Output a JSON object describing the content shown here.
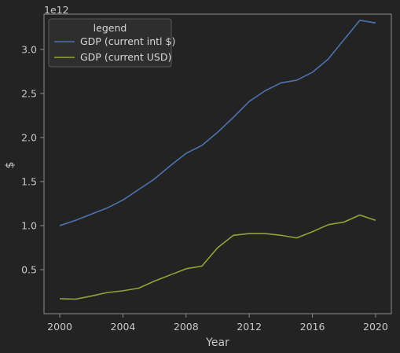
{
  "chart_data": {
    "type": "line",
    "title": "",
    "xlabel": "Year",
    "ylabel": "$",
    "y_offset_label": "1e12",
    "xlim": [
      1999,
      2021
    ],
    "ylim": [
      0.0,
      3.4
    ],
    "x_ticks": [
      2000,
      2004,
      2008,
      2012,
      2016,
      2020
    ],
    "y_ticks": [
      0.5,
      1.0,
      1.5,
      2.0,
      2.5,
      3.0
    ],
    "y_tick_labels": [
      "0.5",
      "1.0",
      "1.5",
      "2.0",
      "2.5",
      "3.0"
    ],
    "grid": false,
    "legend": {
      "title": "legend",
      "position": "top-left"
    },
    "x": [
      2000,
      2001,
      2002,
      2003,
      2004,
      2005,
      2006,
      2007,
      2008,
      2009,
      2010,
      2011,
      2012,
      2013,
      2014,
      2015,
      2016,
      2017,
      2018,
      2019,
      2020
    ],
    "series": [
      {
        "name": "GDP (current intl $)",
        "color": "#4c72b0",
        "values": [
          1.0,
          1.06,
          1.13,
          1.2,
          1.29,
          1.41,
          1.53,
          1.68,
          1.82,
          1.91,
          2.06,
          2.23,
          2.41,
          2.53,
          2.62,
          2.65,
          2.74,
          2.89,
          3.11,
          3.33,
          3.3
        ]
      },
      {
        "name": "GDP (current USD)",
        "color": "#8fa636",
        "values": [
          0.17,
          0.165,
          0.2,
          0.24,
          0.26,
          0.29,
          0.37,
          0.44,
          0.51,
          0.54,
          0.75,
          0.89,
          0.91,
          0.91,
          0.89,
          0.86,
          0.93,
          1.01,
          1.04,
          1.12,
          1.06
        ]
      }
    ]
  }
}
